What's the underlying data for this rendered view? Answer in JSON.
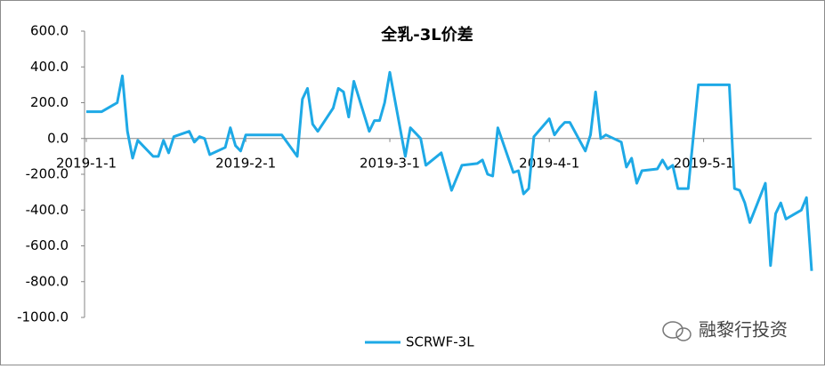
{
  "chart_data": {
    "type": "line",
    "title": "全乳-3L价差",
    "annotation": "融黎行投资",
    "x": [
      "2019-1-1",
      "2019-1-4",
      "2019-1-7",
      "2019-1-8",
      "2019-1-9",
      "2019-1-10",
      "2019-1-11",
      "2019-1-14",
      "2019-1-15",
      "2019-1-16",
      "2019-1-17",
      "2019-1-18",
      "2019-1-21",
      "2019-1-22",
      "2019-1-23",
      "2019-1-24",
      "2019-1-25",
      "2019-1-28",
      "2019-1-29",
      "2019-1-30",
      "2019-1-31",
      "2019-2-1",
      "2019-2-8",
      "2019-2-11",
      "2019-2-12",
      "2019-2-13",
      "2019-2-14",
      "2019-2-15",
      "2019-2-18",
      "2019-2-19",
      "2019-2-20",
      "2019-2-21",
      "2019-2-22",
      "2019-2-25",
      "2019-2-26",
      "2019-2-27",
      "2019-2-28",
      "2019-3-1",
      "2019-3-4",
      "2019-3-5",
      "2019-3-6",
      "2019-3-7",
      "2019-3-8",
      "2019-3-11",
      "2019-3-13",
      "2019-3-15",
      "2019-3-18",
      "2019-3-19",
      "2019-3-20",
      "2019-3-21",
      "2019-3-22",
      "2019-3-25",
      "2019-3-26",
      "2019-3-27",
      "2019-3-28",
      "2019-3-29",
      "2019-4-1",
      "2019-4-2",
      "2019-4-3",
      "2019-4-4",
      "2019-4-5",
      "2019-4-8",
      "2019-4-9",
      "2019-4-10",
      "2019-4-11",
      "2019-4-12",
      "2019-4-15",
      "2019-4-16",
      "2019-4-17",
      "2019-4-18",
      "2019-4-19",
      "2019-4-22",
      "2019-4-23",
      "2019-4-24",
      "2019-4-25",
      "2019-4-26",
      "2019-4-28",
      "2019-4-30",
      "2019-5-6",
      "2019-5-7",
      "2019-5-8",
      "2019-5-9",
      "2019-5-10",
      "2019-5-13",
      "2019-5-14",
      "2019-5-15",
      "2019-5-16",
      "2019-5-17",
      "2019-5-20",
      "2019-5-21",
      "2019-5-22"
    ],
    "series": [
      {
        "name": "SCRWF-3L",
        "color": "#1ea9e6",
        "values": [
          150,
          150,
          200,
          350,
          40,
          -110,
          -10,
          -100,
          -100,
          -10,
          -80,
          10,
          40,
          -20,
          10,
          0,
          -90,
          -50,
          60,
          -40,
          -70,
          20,
          20,
          -100,
          220,
          280,
          80,
          40,
          170,
          280,
          260,
          120,
          320,
          40,
          100,
          100,
          200,
          370,
          -100,
          60,
          30,
          0,
          -150,
          -80,
          -290,
          -150,
          -140,
          -120,
          -200,
          -210,
          60,
          -190,
          -180,
          -310,
          -280,
          10,
          110,
          20,
          60,
          90,
          90,
          -70,
          20,
          260,
          0,
          20,
          -20,
          -160,
          -110,
          -250,
          -180,
          -170,
          -120,
          -170,
          -150,
          -280,
          -280,
          300,
          300,
          -280,
          -290,
          -360,
          -470,
          -250,
          -710,
          -420,
          -360,
          -450,
          -400,
          -330,
          -740
        ]
      }
    ],
    "xlim": [
      "2019-1-1",
      "2019-5-22"
    ],
    "xticks": [
      "2019-1-1",
      "2019-2-1",
      "2019-3-1",
      "2019-4-1",
      "2019-5-1"
    ],
    "ylim": [
      -1000,
      600
    ],
    "yticks": [
      {
        "value": 600,
        "label": "600.0"
      },
      {
        "value": 400,
        "label": "400.0"
      },
      {
        "value": 200,
        "label": "200.0"
      },
      {
        "value": 0,
        "label": "0.0"
      },
      {
        "value": -200,
        "label": "-200.0"
      },
      {
        "value": -400,
        "label": "-400.0"
      },
      {
        "value": -600,
        "label": "-600.0"
      },
      {
        "value": -800,
        "label": "-800.0"
      },
      {
        "value": -1000,
        "label": "-1000.0"
      }
    ],
    "legend": "bottom"
  }
}
